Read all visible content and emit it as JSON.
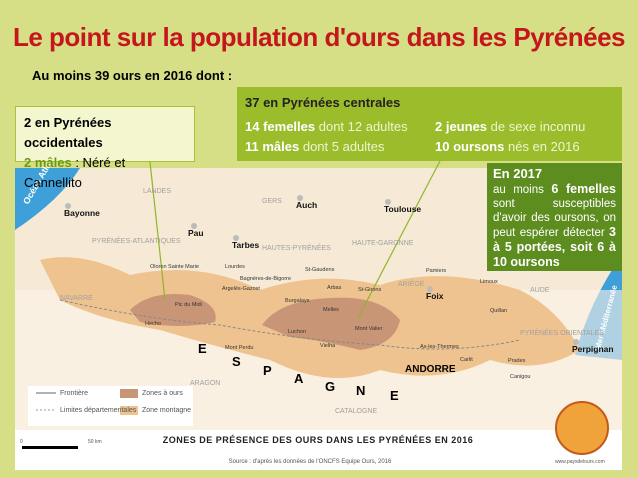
{
  "title": "Le point sur la population d'ours dans les Pyrénées",
  "subtitle": "Au moins 39 ours en 2016 dont :",
  "west_box": {
    "heading": "2 en Pyrénées occidentales",
    "strong": "2 mâles",
    "rest": ": Néré et Cannellito"
  },
  "central_box": {
    "heading": "37 en Pyrénées centrales",
    "items": [
      {
        "strong": "14 femelles",
        "rest": "dont 12 adultes"
      },
      {
        "strong": "2 jeunes",
        "rest": "de sexe inconnu"
      },
      {
        "strong": "11 mâles",
        "rest": "dont 5 adultes"
      },
      {
        "strong": "10 oursons",
        "rest": "nés en 2016"
      }
    ]
  },
  "forecast_box": {
    "heading": "En 2017",
    "parts": [
      {
        "text": "au moins ",
        "bold": false
      },
      {
        "text": "6 femelles",
        "bold": true
      },
      {
        "text": " sont susceptibles d'avoir des oursons, on peut espérer détecter ",
        "bold": false
      },
      {
        "text": "3 à 5 portées, soit 6 à 10 oursons",
        "bold": true
      }
    ]
  },
  "map": {
    "seas": [
      "Océan Atlantique",
      "Mer Méditerranée"
    ],
    "regions": [
      "LANDES",
      "GERS",
      "PYRÉNÉES-ATLANTIQUES",
      "HAUTES-PYRÉNÉES",
      "HAUTE-GARONNE",
      "ARIÈGE",
      "AUDE",
      "PYRÉNÉES ORIENTALES",
      "NAVARRE",
      "ARAGON",
      "CATALOGNE"
    ],
    "cities": [
      "Bayonne",
      "Auch",
      "Toulouse",
      "Pau",
      "Tarbes",
      "Foix",
      "Perpignan"
    ],
    "towns": [
      "Oloron Sainte Marie",
      "Lourdes",
      "Bagnères-de-Bigorre",
      "Argelès-Gazost",
      "St-Gaudens",
      "Pamiers",
      "Limoux",
      "Arbas",
      "St-Girons",
      "Quillan",
      "Burgalays",
      "Melles",
      "Luchon",
      "Hecho",
      "Vielha",
      "Ax-les-Thermes",
      "Prades"
    ],
    "peaks": [
      "Pic du Midi",
      "Mont Perdu",
      "Mont Valier",
      "Carlit",
      "Canigou"
    ],
    "andorra": "ANDORRE",
    "spain_letters": [
      "E",
      "S",
      "P",
      "A",
      "G",
      "N",
      "E"
    ],
    "legend": [
      "Frontière",
      "Limites départementales",
      "Zones à ours",
      "Zone montagne"
    ],
    "scale": [
      "0",
      "50 km"
    ],
    "map_title": "ZONES DE PRÉSENCE DES OURS DANS LES PYRÉNÉES EN 2016",
    "source": "Source : d'après les données de l'ONCFS Equipe Ours, 2016",
    "website": "www.paysdelours.com"
  }
}
